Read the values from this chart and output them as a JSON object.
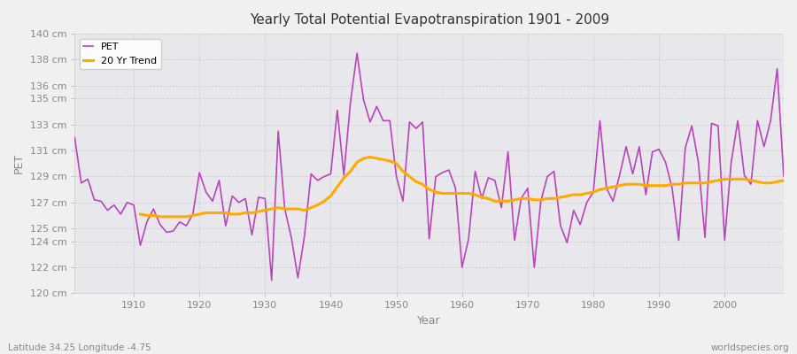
{
  "title": "Yearly Total Potential Evapotranspiration 1901 - 2009",
  "xlabel": "Year",
  "ylabel": "PET",
  "footnote_left": "Latitude 34.25 Longitude -4.75",
  "footnote_right": "worldspecies.org",
  "legend_pet": "PET",
  "legend_trend": "20 Yr Trend",
  "pet_color": "#bb44bb",
  "trend_color": "#ffaa00",
  "fig_bg_color": "#f0f0f0",
  "plot_bg_color": "#e8e8ec",
  "grid_color": "#cccccc",
  "tick_color": "#888888",
  "title_color": "#333333",
  "ylim_min": 120,
  "ylim_max": 140,
  "yticks": [
    120,
    122,
    124,
    125,
    127,
    129,
    131,
    133,
    135,
    136,
    138,
    140
  ],
  "xtick_years": [
    1910,
    1920,
    1930,
    1940,
    1950,
    1960,
    1970,
    1980,
    1990,
    2000
  ],
  "years": [
    1901,
    1902,
    1903,
    1904,
    1905,
    1906,
    1907,
    1908,
    1909,
    1910,
    1911,
    1912,
    1913,
    1914,
    1915,
    1916,
    1917,
    1918,
    1919,
    1920,
    1921,
    1922,
    1923,
    1924,
    1925,
    1926,
    1927,
    1928,
    1929,
    1930,
    1931,
    1932,
    1933,
    1934,
    1935,
    1936,
    1937,
    1938,
    1939,
    1940,
    1941,
    1942,
    1943,
    1944,
    1945,
    1946,
    1947,
    1948,
    1949,
    1950,
    1951,
    1952,
    1953,
    1954,
    1955,
    1956,
    1957,
    1958,
    1959,
    1960,
    1961,
    1962,
    1963,
    1964,
    1965,
    1966,
    1967,
    1968,
    1969,
    1970,
    1971,
    1972,
    1973,
    1974,
    1975,
    1976,
    1977,
    1978,
    1979,
    1980,
    1981,
    1982,
    1983,
    1984,
    1985,
    1986,
    1987,
    1988,
    1989,
    1990,
    1991,
    1992,
    1993,
    1994,
    1995,
    1996,
    1997,
    1998,
    1999,
    2000,
    2001,
    2002,
    2003,
    2004,
    2005,
    2006,
    2007,
    2008,
    2009
  ],
  "pet_values": [
    132.0,
    128.5,
    128.8,
    127.2,
    127.1,
    126.4,
    126.8,
    126.1,
    127.0,
    126.8,
    123.7,
    125.5,
    126.5,
    125.3,
    124.7,
    124.8,
    125.5,
    125.2,
    126.1,
    129.3,
    127.8,
    127.1,
    128.7,
    125.2,
    127.5,
    127.0,
    127.3,
    124.5,
    127.4,
    127.3,
    121.0,
    132.5,
    126.5,
    124.3,
    121.2,
    124.4,
    129.2,
    128.7,
    129.0,
    129.2,
    134.1,
    129.1,
    134.7,
    138.5,
    134.9,
    133.2,
    134.4,
    133.3,
    133.3,
    129.0,
    127.1,
    133.2,
    132.7,
    133.2,
    124.2,
    129.0,
    129.3,
    129.5,
    128.1,
    122.0,
    124.2,
    129.4,
    127.3,
    128.9,
    128.7,
    126.6,
    130.9,
    124.1,
    127.3,
    128.1,
    122.0,
    127.1,
    129.0,
    129.4,
    125.2,
    123.9,
    126.4,
    125.3,
    127.0,
    127.8,
    133.3,
    128.1,
    127.1,
    129.1,
    131.3,
    129.2,
    131.3,
    127.6,
    130.9,
    131.1,
    130.1,
    128.1,
    124.1,
    131.2,
    132.9,
    130.1,
    124.3,
    133.1,
    132.9,
    124.1,
    130.1,
    133.3,
    129.1,
    128.4,
    133.3,
    131.3,
    133.3,
    137.3,
    129.0
  ],
  "trend_values": [
    null,
    null,
    null,
    null,
    null,
    null,
    null,
    null,
    null,
    null,
    126.1,
    126.0,
    126.0,
    125.9,
    125.9,
    125.9,
    125.9,
    125.9,
    126.0,
    126.1,
    126.2,
    126.2,
    126.2,
    126.2,
    126.1,
    126.1,
    126.2,
    126.2,
    126.3,
    126.4,
    126.5,
    126.6,
    126.5,
    126.5,
    126.5,
    126.4,
    126.6,
    126.8,
    127.1,
    127.5,
    128.2,
    128.9,
    129.4,
    130.1,
    130.4,
    130.5,
    130.4,
    130.3,
    130.2,
    130.0,
    129.4,
    129.0,
    128.6,
    128.4,
    128.0,
    127.8,
    127.7,
    127.7,
    127.7,
    127.7,
    127.7,
    127.6,
    127.4,
    127.3,
    127.1,
    127.1,
    127.1,
    127.2,
    127.3,
    127.3,
    127.2,
    127.2,
    127.3,
    127.3,
    127.4,
    127.5,
    127.6,
    127.6,
    127.7,
    127.8,
    128.0,
    128.1,
    128.2,
    128.3,
    128.4,
    128.4,
    128.4,
    128.3,
    128.3,
    128.3,
    128.3,
    128.4,
    128.4,
    128.5,
    128.5,
    128.5,
    128.5,
    128.6,
    128.7,
    128.8,
    128.8,
    128.8,
    128.8,
    128.7,
    128.6,
    128.5,
    128.5,
    128.6,
    128.7
  ]
}
